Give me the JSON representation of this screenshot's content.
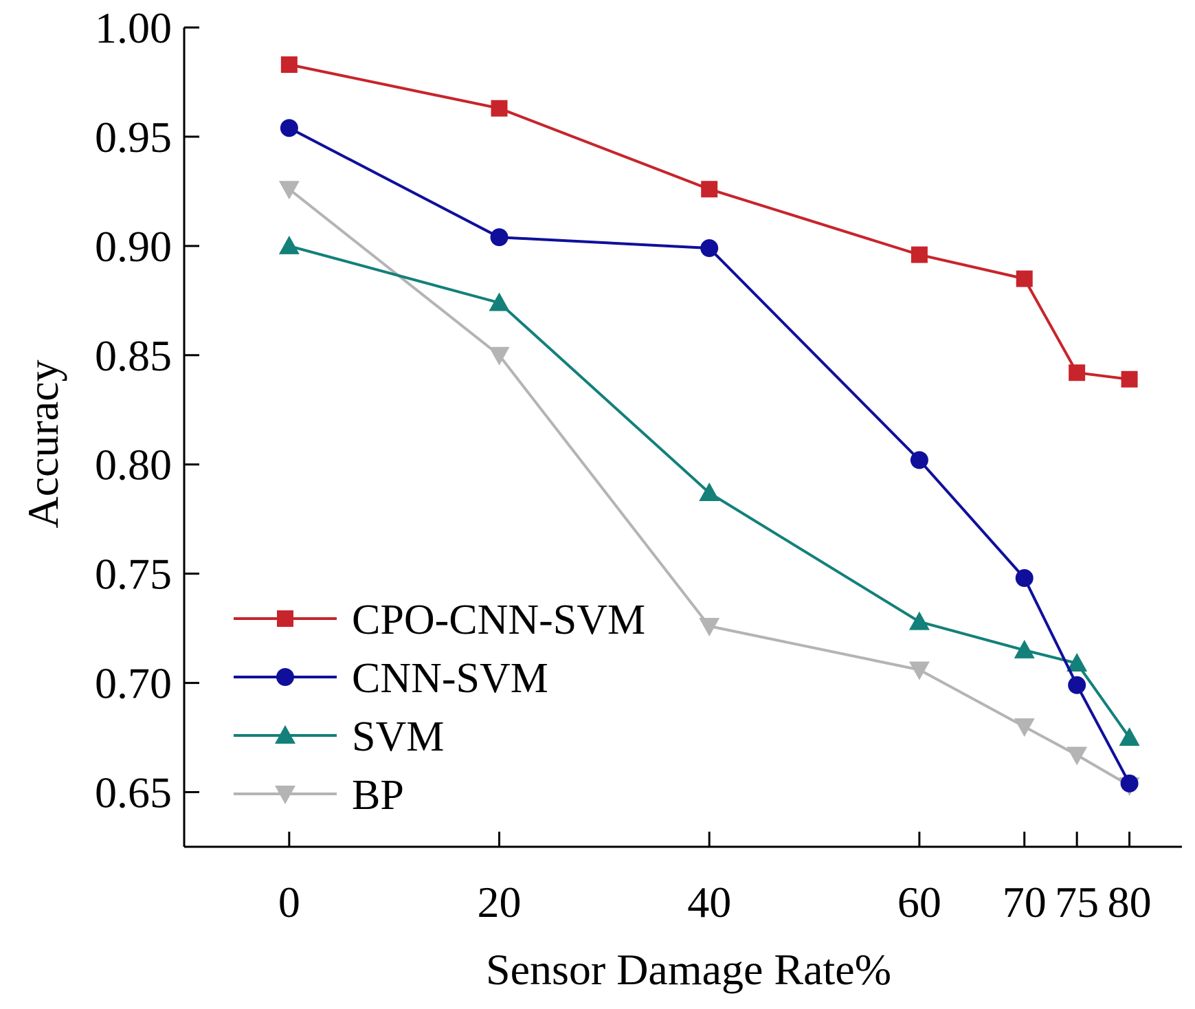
{
  "chart_data": {
    "type": "line",
    "xlabel": "Sensor Damage Rate%",
    "ylabel": "Accuracy",
    "x": [
      0,
      20,
      40,
      60,
      70,
      75,
      80
    ],
    "xticks": [
      "0",
      "20",
      "40",
      "60",
      "70",
      "75",
      "80"
    ],
    "xlim": [
      -10,
      85
    ],
    "ylim": [
      0.625,
      1.0
    ],
    "yticks": [
      "0.65",
      "0.70",
      "0.75",
      "0.80",
      "0.85",
      "0.90",
      "0.95",
      "1.00"
    ],
    "grid": false,
    "legend_position": "bottom-left",
    "series": [
      {
        "name": "CPO-CNN-SVM",
        "color": "#c8242b",
        "marker": "square",
        "values": [
          0.983,
          0.963,
          0.926,
          0.896,
          0.885,
          0.842,
          0.839
        ]
      },
      {
        "name": "CNN-SVM",
        "color": "#0f0f9c",
        "marker": "circle",
        "values": [
          0.954,
          0.904,
          0.899,
          0.802,
          0.748,
          0.699,
          0.654
        ]
      },
      {
        "name": "SVM",
        "color": "#13807a",
        "marker": "triangle-up",
        "values": [
          0.9,
          0.874,
          0.787,
          0.728,
          0.715,
          0.709,
          0.675
        ]
      },
      {
        "name": "BP",
        "color": "#b4b4b4",
        "marker": "triangle-down",
        "values": [
          0.926,
          0.85,
          0.726,
          0.706,
          0.68,
          0.667,
          0.653
        ]
      }
    ]
  }
}
